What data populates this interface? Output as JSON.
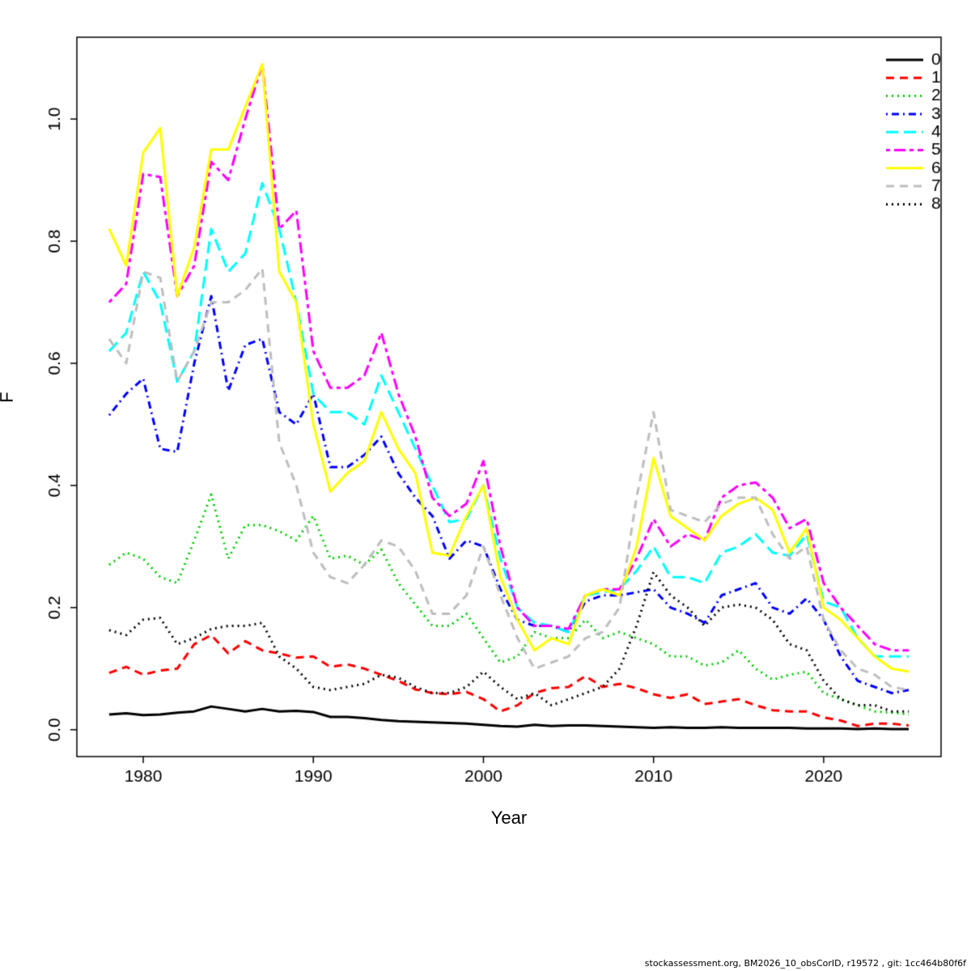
{
  "figure": {
    "xlabel": "Year",
    "ylabel": "F",
    "footer": "stockassessment.org, BM2026_10_obsCorID, r19572 , git: 1cc464b80f6f"
  },
  "chart_data": {
    "type": "line",
    "title": "",
    "xlabel": "Year",
    "ylabel": "F",
    "grid": false,
    "legend_position": "top-right",
    "xlim": [
      1976.1,
      2026.9
    ],
    "ylim": [
      -0.044,
      1.134
    ],
    "xticks": [
      1980,
      1990,
      2000,
      2010,
      2020
    ],
    "xtick_labels": [
      "1980",
      "1990",
      "2000",
      "2010",
      "2020"
    ],
    "yticks": [
      0.0,
      0.2,
      0.4,
      0.6,
      0.8,
      1.0
    ],
    "ytick_labels": [
      "0.0",
      "0.2",
      "0.4",
      "0.6",
      "0.8",
      "1.0"
    ],
    "x": [
      1978,
      1979,
      1980,
      1981,
      1982,
      1983,
      1984,
      1985,
      1986,
      1987,
      1988,
      1989,
      1990,
      1991,
      1992,
      1993,
      1994,
      1995,
      1996,
      1997,
      1998,
      1999,
      2000,
      2001,
      2002,
      2003,
      2004,
      2005,
      2006,
      2007,
      2008,
      2009,
      2010,
      2011,
      2012,
      2013,
      2014,
      2015,
      2016,
      2017,
      2018,
      2019,
      2020,
      2021,
      2022,
      2023,
      2024,
      2025
    ],
    "series": [
      {
        "name": "0",
        "color": "#000000",
        "dash": [],
        "linestyle": "solid",
        "values": [
          0.025,
          0.027,
          0.024,
          0.025,
          0.028,
          0.03,
          0.038,
          0.034,
          0.03,
          0.034,
          0.03,
          0.031,
          0.029,
          0.021,
          0.021,
          0.019,
          0.016,
          0.014,
          0.013,
          0.012,
          0.011,
          0.01,
          0.008,
          0.006,
          0.005,
          0.008,
          0.006,
          0.007,
          0.007,
          0.006,
          0.005,
          0.004,
          0.003,
          0.004,
          0.003,
          0.003,
          0.004,
          0.003,
          0.003,
          0.003,
          0.003,
          0.002,
          0.002,
          0.002,
          0.001,
          0.002,
          0.001,
          0.001
        ]
      },
      {
        "name": "1",
        "color": "#ff0000",
        "dash": [
          10,
          7
        ],
        "linestyle": "dashed",
        "values": [
          0.093,
          0.103,
          0.09,
          0.097,
          0.1,
          0.14,
          0.155,
          0.125,
          0.145,
          0.13,
          0.125,
          0.118,
          0.12,
          0.103,
          0.107,
          0.1,
          0.09,
          0.08,
          0.066,
          0.06,
          0.058,
          0.062,
          0.05,
          0.03,
          0.04,
          0.06,
          0.068,
          0.07,
          0.088,
          0.07,
          0.075,
          0.068,
          0.058,
          0.052,
          0.058,
          0.042,
          0.046,
          0.05,
          0.04,
          0.032,
          0.03,
          0.03,
          0.02,
          0.015,
          0.006,
          0.01,
          0.01,
          0.007
        ]
      },
      {
        "name": "2",
        "color": "#00cd00",
        "dash": [
          2,
          5
        ],
        "linestyle": "dotted",
        "values": [
          0.27,
          0.29,
          0.28,
          0.25,
          0.24,
          0.31,
          0.385,
          0.28,
          0.335,
          0.335,
          0.325,
          0.31,
          0.35,
          0.28,
          0.285,
          0.27,
          0.295,
          0.24,
          0.205,
          0.17,
          0.17,
          0.19,
          0.15,
          0.11,
          0.12,
          0.16,
          0.15,
          0.15,
          0.18,
          0.15,
          0.16,
          0.15,
          0.14,
          0.12,
          0.12,
          0.105,
          0.11,
          0.13,
          0.1,
          0.082,
          0.09,
          0.095,
          0.06,
          0.05,
          0.04,
          0.03,
          0.028,
          0.025
        ]
      },
      {
        "name": "3",
        "color": "#0000ff",
        "dash": [
          2,
          5,
          9,
          5
        ],
        "linestyle": "dotdash",
        "values": [
          0.515,
          0.55,
          0.575,
          0.46,
          0.455,
          0.6,
          0.71,
          0.555,
          0.63,
          0.64,
          0.52,
          0.5,
          0.55,
          0.43,
          0.43,
          0.45,
          0.48,
          0.42,
          0.38,
          0.35,
          0.28,
          0.31,
          0.3,
          0.23,
          0.18,
          0.17,
          0.17,
          0.16,
          0.21,
          0.22,
          0.22,
          0.225,
          0.23,
          0.2,
          0.19,
          0.175,
          0.22,
          0.23,
          0.24,
          0.2,
          0.19,
          0.215,
          0.18,
          0.12,
          0.08,
          0.07,
          0.06,
          0.065
        ]
      },
      {
        "name": "4",
        "color": "#00ffff",
        "dash": [
          15,
          7
        ],
        "linestyle": "longdash",
        "values": [
          0.62,
          0.65,
          0.75,
          0.7,
          0.57,
          0.62,
          0.82,
          0.75,
          0.78,
          0.895,
          0.82,
          0.7,
          0.55,
          0.52,
          0.52,
          0.5,
          0.58,
          0.52,
          0.46,
          0.4,
          0.34,
          0.345,
          0.4,
          0.28,
          0.2,
          0.175,
          0.17,
          0.16,
          0.22,
          0.225,
          0.23,
          0.26,
          0.3,
          0.25,
          0.25,
          0.24,
          0.29,
          0.3,
          0.32,
          0.29,
          0.285,
          0.32,
          0.21,
          0.2,
          0.15,
          0.12,
          0.12,
          0.12
        ]
      },
      {
        "name": "5",
        "color": "#ff00ff",
        "dash": [
          5,
          5,
          14,
          5
        ],
        "linestyle": "twodash",
        "values": [
          0.7,
          0.73,
          0.91,
          0.905,
          0.71,
          0.76,
          0.93,
          0.9,
          1.0,
          1.09,
          0.82,
          0.85,
          0.62,
          0.56,
          0.56,
          0.58,
          0.65,
          0.55,
          0.48,
          0.38,
          0.35,
          0.37,
          0.44,
          0.3,
          0.2,
          0.17,
          0.17,
          0.165,
          0.22,
          0.23,
          0.23,
          0.28,
          0.345,
          0.3,
          0.32,
          0.31,
          0.38,
          0.4,
          0.405,
          0.38,
          0.33,
          0.345,
          0.24,
          0.2,
          0.17,
          0.14,
          0.13,
          0.13
        ]
      },
      {
        "name": "6",
        "color": "#ffff00",
        "dash": [],
        "linestyle": "solid",
        "values": [
          0.82,
          0.76,
          0.945,
          0.985,
          0.71,
          0.79,
          0.95,
          0.95,
          1.02,
          1.09,
          0.75,
          0.7,
          0.5,
          0.39,
          0.42,
          0.44,
          0.52,
          0.46,
          0.42,
          0.29,
          0.285,
          0.35,
          0.4,
          0.25,
          0.18,
          0.13,
          0.15,
          0.14,
          0.22,
          0.23,
          0.22,
          0.3,
          0.445,
          0.35,
          0.33,
          0.31,
          0.35,
          0.37,
          0.38,
          0.36,
          0.29,
          0.33,
          0.2,
          0.18,
          0.15,
          0.12,
          0.1,
          0.095
        ]
      },
      {
        "name": "7",
        "color": "#bebebe",
        "dash": [
          10,
          7
        ],
        "linestyle": "dashed",
        "values": [
          0.64,
          0.6,
          0.75,
          0.74,
          0.57,
          0.62,
          0.7,
          0.7,
          0.72,
          0.755,
          0.47,
          0.4,
          0.29,
          0.25,
          0.24,
          0.27,
          0.31,
          0.3,
          0.26,
          0.19,
          0.19,
          0.22,
          0.3,
          0.22,
          0.15,
          0.1,
          0.11,
          0.12,
          0.15,
          0.16,
          0.2,
          0.38,
          0.52,
          0.36,
          0.35,
          0.34,
          0.37,
          0.38,
          0.38,
          0.32,
          0.28,
          0.3,
          0.18,
          0.13,
          0.1,
          0.09,
          0.07,
          0.065
        ]
      },
      {
        "name": "8",
        "color": "#000000",
        "dash": [
          2,
          5
        ],
        "linestyle": "dotted",
        "values": [
          0.163,
          0.155,
          0.18,
          0.183,
          0.14,
          0.15,
          0.165,
          0.17,
          0.17,
          0.175,
          0.12,
          0.1,
          0.07,
          0.065,
          0.07,
          0.075,
          0.09,
          0.085,
          0.07,
          0.06,
          0.06,
          0.07,
          0.095,
          0.07,
          0.05,
          0.06,
          0.04,
          0.05,
          0.06,
          0.07,
          0.1,
          0.17,
          0.258,
          0.22,
          0.2,
          0.17,
          0.2,
          0.205,
          0.2,
          0.18,
          0.14,
          0.13,
          0.08,
          0.05,
          0.04,
          0.04,
          0.03,
          0.03
        ]
      }
    ]
  }
}
